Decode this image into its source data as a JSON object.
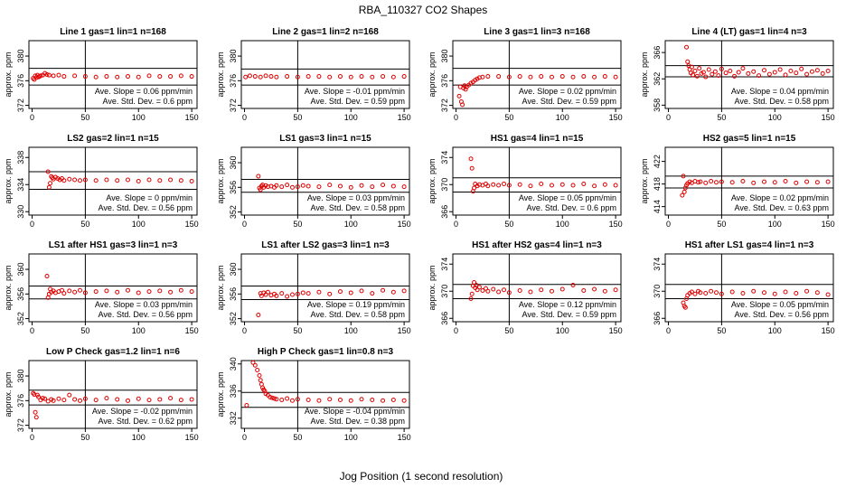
{
  "figure": {
    "title": "RBA_110327  CO2 Shapes",
    "xlabel": "Jog Position (1 second resolution)"
  },
  "colors": {
    "points": "#e00000",
    "axes": "#000000"
  },
  "chart_data": [
    {
      "type": "scatter",
      "title": "Line 1 gas=1 lin=1 n=168",
      "ylabel": "approx. ppm",
      "xlim": [
        -3,
        155
      ],
      "ylim": [
        371.5,
        382.5
      ],
      "xticks": [
        0,
        50,
        100,
        150
      ],
      "yticks": [
        372,
        376,
        380
      ],
      "hlines": [
        375.3,
        378.0
      ],
      "vline": 50,
      "annotations": [
        "Ave. Slope =  0.06  ppm/min",
        "Ave. Std. Dev. =  0.6  ppm"
      ],
      "x": [
        1,
        2,
        3,
        4,
        5,
        6,
        7,
        8,
        10,
        12,
        14,
        16,
        20,
        25,
        30,
        40,
        50,
        60,
        70,
        80,
        90,
        100,
        110,
        120,
        130,
        140,
        150
      ],
      "y": [
        376.4,
        376.2,
        376.8,
        376.5,
        376.9,
        376.6,
        376.7,
        376.8,
        376.9,
        377.2,
        377.0,
        376.9,
        376.8,
        376.9,
        376.7,
        376.8,
        376.7,
        376.6,
        376.7,
        376.6,
        376.7,
        376.6,
        376.8,
        376.7,
        376.7,
        376.8,
        376.7
      ]
    },
    {
      "type": "scatter",
      "title": "Line 2 gas=1 lin=2 n=168",
      "ylabel": "approx. ppm",
      "xlim": [
        -3,
        155
      ],
      "ylim": [
        371.5,
        382.5
      ],
      "xticks": [
        0,
        50,
        100,
        150
      ],
      "yticks": [
        372,
        376,
        380
      ],
      "hlines": [
        375.3,
        377.9
      ],
      "vline": 50,
      "annotations": [
        "Ave. Slope =  -0.01  ppm/min",
        "Ave. Std. Dev. =  0.59  ppm"
      ],
      "x": [
        1,
        5,
        10,
        15,
        20,
        25,
        30,
        40,
        50,
        60,
        70,
        80,
        90,
        100,
        110,
        120,
        130,
        140,
        150
      ],
      "y": [
        376.6,
        376.8,
        376.7,
        376.6,
        376.8,
        376.7,
        376.6,
        376.7,
        376.6,
        376.7,
        376.7,
        376.6,
        376.7,
        376.6,
        376.7,
        376.6,
        376.7,
        376.6,
        376.7
      ]
    },
    {
      "type": "scatter",
      "title": "Line 3 gas=1 lin=3 n=168",
      "ylabel": "approx. ppm",
      "xlim": [
        -3,
        155
      ],
      "ylim": [
        371.5,
        382.5
      ],
      "xticks": [
        0,
        50,
        100,
        150
      ],
      "yticks": [
        372,
        376,
        380
      ],
      "hlines": [
        375.3,
        378.0
      ],
      "vline": 50,
      "annotations": [
        "Ave. Slope =  0.02  ppm/min",
        "Ave. Std. Dev. =  0.59  ppm"
      ],
      "x": [
        3,
        4,
        5,
        6,
        7,
        8,
        9,
        10,
        12,
        14,
        16,
        18,
        20,
        22,
        25,
        30,
        40,
        50,
        60,
        70,
        80,
        90,
        100,
        110,
        120,
        130,
        140,
        150
      ],
      "y": [
        373.5,
        375.0,
        372.6,
        372.1,
        374.8,
        375.2,
        374.6,
        375.0,
        375.3,
        375.6,
        375.8,
        376.1,
        376.3,
        376.5,
        376.6,
        376.7,
        376.7,
        376.6,
        376.7,
        376.6,
        376.7,
        376.6,
        376.7,
        376.6,
        376.7,
        376.6,
        376.7,
        376.6
      ]
    },
    {
      "type": "scatter",
      "title": "Line 4 (LT) gas=1 lin=4 n=3",
      "ylabel": "approx. ppm",
      "xlim": [
        -3,
        155
      ],
      "ylim": [
        357.5,
        367.8
      ],
      "xticks": [
        0,
        50,
        100,
        150
      ],
      "yticks": [
        358,
        362,
        366
      ],
      "hlines": [
        362.3,
        364.0
      ],
      "vline": 50,
      "annotations": [
        "Ave. Slope =  0.04  ppm/min",
        "Ave. Std. Dev. =  0.58  ppm"
      ],
      "x": [
        17,
        18,
        19,
        20,
        21,
        22,
        23,
        25,
        27,
        29,
        31,
        33,
        35,
        38,
        41,
        44,
        47,
        50,
        54,
        58,
        62,
        66,
        70,
        75,
        80,
        85,
        90,
        95,
        100,
        105,
        110,
        115,
        120,
        125,
        130,
        135,
        140,
        145,
        150
      ],
      "y": [
        366.8,
        364.6,
        364.0,
        363.4,
        362.9,
        363.8,
        362.6,
        363.2,
        362.4,
        363.6,
        362.8,
        363.0,
        362.3,
        363.4,
        362.7,
        363.1,
        362.5,
        363.5,
        362.9,
        363.2,
        362.4,
        363.0,
        363.6,
        362.8,
        363.1,
        362.5,
        363.3,
        362.7,
        363.0,
        363.4,
        362.6,
        363.2,
        362.9,
        363.5,
        362.7,
        363.1,
        363.3,
        362.8,
        363.2
      ]
    },
    {
      "type": "scatter",
      "title": "LS2 gas=2 lin=1 n=15",
      "ylabel": "approx. ppm",
      "xlim": [
        -3,
        155
      ],
      "ylim": [
        329.5,
        339.5
      ],
      "xticks": [
        0,
        50,
        100,
        150
      ],
      "yticks": [
        330,
        334,
        338
      ],
      "hlines": [
        333.3,
        335.9
      ],
      "vline": 50,
      "annotations": [
        "Ave. Slope =  0  ppm/min",
        "Ave. Std. Dev. =  0.56  ppm"
      ],
      "x": [
        15,
        16,
        17,
        18,
        19,
        20,
        22,
        24,
        26,
        28,
        30,
        35,
        40,
        45,
        50,
        60,
        70,
        80,
        90,
        100,
        110,
        120,
        130,
        140,
        150
      ],
      "y": [
        335.9,
        333.6,
        334.2,
        335.2,
        335.0,
        334.8,
        335.1,
        334.9,
        334.7,
        334.9,
        334.6,
        334.8,
        334.7,
        334.6,
        334.7,
        334.6,
        334.7,
        334.6,
        334.7,
        334.5,
        334.7,
        334.6,
        334.7,
        334.6,
        334.5
      ]
    },
    {
      "type": "scatter",
      "title": "LS1 gas=3 lin=1 n=15",
      "ylabel": "approx. ppm",
      "xlim": [
        -3,
        155
      ],
      "ylim": [
        351.5,
        362.5
      ],
      "xticks": [
        0,
        50,
        100,
        150
      ],
      "yticks": [
        352,
        356,
        360
      ],
      "hlines": [
        355.2,
        357.3
      ],
      "vline": 50,
      "annotations": [
        "Ave. Slope =  0.03  ppm/min",
        "Ave. Std. Dev. =  0.58  ppm"
      ],
      "x": [
        13,
        14,
        15,
        16,
        17,
        18,
        20,
        22,
        25,
        28,
        30,
        35,
        40,
        45,
        50,
        55,
        60,
        70,
        80,
        90,
        100,
        110,
        120,
        130,
        140,
        150
      ],
      "y": [
        357.8,
        355.9,
        355.6,
        356.2,
        356.4,
        356.0,
        356.3,
        356.1,
        356.2,
        356.0,
        356.3,
        356.1,
        356.4,
        356.0,
        356.1,
        356.3,
        356.2,
        356.1,
        356.4,
        356.2,
        356.0,
        356.3,
        356.1,
        356.4,
        356.2,
        356.1
      ]
    },
    {
      "type": "scatter",
      "title": "HS1 gas=4 lin=1 n=15",
      "ylabel": "approx. ppm",
      "xlim": [
        -3,
        155
      ],
      "ylim": [
        365.5,
        375.5
      ],
      "xticks": [
        0,
        50,
        100,
        150
      ],
      "yticks": [
        366,
        370,
        374
      ],
      "hlines": [
        368.9,
        371.0
      ],
      "vline": 50,
      "annotations": [
        "Ave. Slope =  0.05  ppm/min",
        "Ave. Std. Dev. =  0.6  ppm"
      ],
      "x": [
        14,
        15,
        16,
        17,
        18,
        20,
        22,
        25,
        28,
        30,
        35,
        40,
        45,
        50,
        60,
        70,
        80,
        90,
        100,
        110,
        120,
        130,
        140,
        150
      ],
      "y": [
        373.8,
        372.4,
        369.0,
        369.5,
        370.1,
        369.8,
        370.0,
        369.9,
        370.1,
        369.8,
        370.0,
        369.9,
        370.1,
        369.9,
        370.0,
        369.8,
        370.1,
        369.9,
        370.0,
        369.9,
        370.1,
        369.8,
        370.0,
        369.9
      ]
    },
    {
      "type": "scatter",
      "title": "HS2 gas=5 lin=1 n=15",
      "ylabel": "approx. ppm",
      "xlim": [
        -3,
        155
      ],
      "ylim": [
        412.5,
        424.5
      ],
      "xticks": [
        0,
        50,
        100,
        150
      ],
      "yticks": [
        414,
        418,
        422
      ],
      "hlines": [
        417.3,
        419.4
      ],
      "vline": 50,
      "annotations": [
        "Ave. Slope =  0.02  ppm/min",
        "Ave. Std. Dev. =  0.63  ppm"
      ],
      "x": [
        13,
        14,
        15,
        16,
        17,
        18,
        20,
        22,
        25,
        28,
        30,
        35,
        40,
        45,
        50,
        60,
        70,
        80,
        90,
        100,
        110,
        120,
        130,
        140,
        150
      ],
      "y": [
        416.0,
        419.4,
        416.6,
        417.3,
        417.8,
        418.1,
        418.4,
        418.2,
        418.5,
        418.3,
        418.4,
        418.2,
        418.5,
        418.3,
        418.4,
        418.3,
        418.5,
        418.2,
        418.4,
        418.3,
        418.5,
        418.2,
        418.4,
        418.3,
        418.4
      ]
    },
    {
      "type": "scatter",
      "title": "LS1 after HS1 gas=3 lin=1 n=3",
      "ylabel": "approx. ppm",
      "xlim": [
        -3,
        155
      ],
      "ylim": [
        351.5,
        362.5
      ],
      "xticks": [
        0,
        50,
        100,
        150
      ],
      "yticks": [
        352,
        356,
        360
      ],
      "hlines": [
        355.2,
        357.3
      ],
      "vline": 50,
      "annotations": [
        "Ave. Slope =  0.03  ppm/min",
        "Ave. Std. Dev. =  0.56  ppm"
      ],
      "x": [
        14,
        15,
        16,
        17,
        18,
        20,
        22,
        25,
        28,
        30,
        35,
        40,
        45,
        50,
        60,
        70,
        80,
        90,
        100,
        110,
        120,
        130,
        140,
        150
      ],
      "y": [
        358.9,
        355.4,
        356.0,
        356.8,
        356.3,
        356.5,
        356.2,
        356.4,
        356.6,
        356.1,
        356.5,
        356.3,
        356.6,
        356.2,
        356.4,
        356.5,
        356.3,
        356.6,
        356.2,
        356.4,
        356.5,
        356.3,
        356.6,
        356.4
      ]
    },
    {
      "type": "scatter",
      "title": "LS1 after LS2 gas=3 lin=1 n=3",
      "ylabel": "approx. ppm",
      "xlim": [
        -3,
        155
      ],
      "ylim": [
        351.5,
        362.5
      ],
      "xticks": [
        0,
        50,
        100,
        150
      ],
      "yticks": [
        352,
        356,
        360
      ],
      "hlines": [
        355.1,
        357.3
      ],
      "vline": 50,
      "annotations": [
        "Ave. Slope =  0.19  ppm/min",
        "Ave. Std. Dev. =  0.58  ppm"
      ],
      "x": [
        13,
        15,
        16,
        18,
        20,
        22,
        25,
        28,
        30,
        35,
        40,
        45,
        50,
        55,
        60,
        70,
        80,
        90,
        100,
        110,
        120,
        130,
        140,
        150
      ],
      "y": [
        352.6,
        356.1,
        355.7,
        356.2,
        355.9,
        356.3,
        355.8,
        356.0,
        355.7,
        356.1,
        355.6,
        355.9,
        356.0,
        356.2,
        356.1,
        356.3,
        356.0,
        356.4,
        356.2,
        356.5,
        356.1,
        356.6,
        356.3,
        356.5
      ]
    },
    {
      "type": "scatter",
      "title": "HS1 after HS2 gas=4 lin=1 n=3",
      "ylabel": "approx. ppm",
      "xlim": [
        -3,
        155
      ],
      "ylim": [
        365.5,
        375.5
      ],
      "xticks": [
        0,
        50,
        100,
        150
      ],
      "yticks": [
        366,
        370,
        374
      ],
      "hlines": [
        368.9,
        371.0
      ],
      "vline": 50,
      "annotations": [
        "Ave. Slope =  0.12  ppm/min",
        "Ave. Std. Dev. =  0.59  ppm"
      ],
      "x": [
        14,
        15,
        16,
        17,
        18,
        19,
        20,
        22,
        25,
        28,
        30,
        35,
        40,
        45,
        50,
        60,
        70,
        80,
        90,
        100,
        110,
        120,
        130,
        140,
        150
      ],
      "y": [
        368.9,
        369.6,
        370.8,
        371.3,
        370.5,
        370.9,
        370.2,
        370.6,
        370.1,
        370.4,
        370.0,
        370.3,
        369.9,
        370.2,
        369.8,
        370.1,
        369.9,
        370.2,
        370.0,
        370.3,
        370.9,
        370.1,
        370.3,
        370.0,
        370.2
      ]
    },
    {
      "type": "scatter",
      "title": "HS1 after LS1 gas=4 lin=1 n=3",
      "ylabel": "",
      "xlim": [
        -3,
        155
      ],
      "ylim": [
        365.5,
        375.5
      ],
      "xticks": [
        0,
        50,
        100,
        150
      ],
      "yticks": [
        366,
        370,
        374
      ],
      "hlines": [
        368.9,
        371.0
      ],
      "vline": 50,
      "annotations": [
        "Ave. Slope =  0.05  ppm/min",
        "Ave. Std. Dev. =  0.56  ppm"
      ],
      "x": [
        14,
        15,
        16,
        17,
        18,
        20,
        22,
        25,
        28,
        30,
        35,
        40,
        45,
        50,
        60,
        70,
        80,
        90,
        100,
        110,
        120,
        130,
        140,
        150
      ],
      "y": [
        368.3,
        367.8,
        367.6,
        368.9,
        369.4,
        369.7,
        369.9,
        369.6,
        370.0,
        369.8,
        369.7,
        370.0,
        369.8,
        369.6,
        369.9,
        369.7,
        370.0,
        369.8,
        369.6,
        369.9,
        369.7,
        370.0,
        369.8,
        369.5
      ]
    },
    {
      "type": "scatter",
      "title": "Low P Check gas=1.2 lin=1 n=6",
      "ylabel": "approx. ppm",
      "xlim": [
        -3,
        155
      ],
      "ylim": [
        371.5,
        382.5
      ],
      "xticks": [
        0,
        50,
        100,
        150
      ],
      "yticks": [
        372,
        376,
        380
      ],
      "hlines": [
        375.3,
        377.7
      ],
      "vline": 50,
      "annotations": [
        "Ave. Slope =  -0.02  ppm/min",
        "Ave. Std. Dev. =  0.62  ppm"
      ],
      "x": [
        1,
        2,
        3,
        4,
        5,
        6,
        8,
        10,
        12,
        15,
        18,
        20,
        25,
        30,
        35,
        40,
        45,
        50,
        60,
        70,
        80,
        90,
        100,
        110,
        120,
        130,
        140,
        150
      ],
      "y": [
        377.2,
        377.0,
        374.1,
        373.3,
        376.9,
        376.6,
        376.1,
        376.4,
        376.3,
        375.9,
        376.2,
        376.0,
        376.3,
        376.1,
        376.9,
        376.2,
        376.0,
        376.3,
        376.1,
        376.4,
        376.2,
        376.0,
        376.3,
        376.1,
        376.2,
        376.4,
        376.1,
        376.2
      ]
    },
    {
      "type": "scatter",
      "title": "High P Check gas=1 lin=0.8 n=3",
      "ylabel": "approx. ppm",
      "xlim": [
        -3,
        155
      ],
      "ylim": [
        330.5,
        340.5
      ],
      "xticks": [
        0,
        50,
        100,
        150
      ],
      "yticks": [
        332,
        336,
        340
      ],
      "hlines": [
        333.6,
        335.8
      ],
      "vline": 50,
      "annotations": [
        "Ave. Slope =  -0.04  ppm/min",
        "Ave. Std. Dev. =  0.38  ppm"
      ],
      "x": [
        2,
        8,
        10,
        12,
        14,
        15,
        16,
        17,
        18,
        19,
        20,
        22,
        24,
        26,
        28,
        30,
        35,
        40,
        45,
        50,
        60,
        70,
        80,
        90,
        100,
        110,
        120,
        130,
        140,
        150
      ],
      "y": [
        333.9,
        340.2,
        339.8,
        339.1,
        338.3,
        337.6,
        337.0,
        336.5,
        336.2,
        336.0,
        335.6,
        335.4,
        335.1,
        335.0,
        334.9,
        334.8,
        334.7,
        334.9,
        334.6,
        334.8,
        334.7,
        334.6,
        334.8,
        334.7,
        334.6,
        334.8,
        334.7,
        334.6,
        334.7,
        334.6
      ]
    }
  ]
}
